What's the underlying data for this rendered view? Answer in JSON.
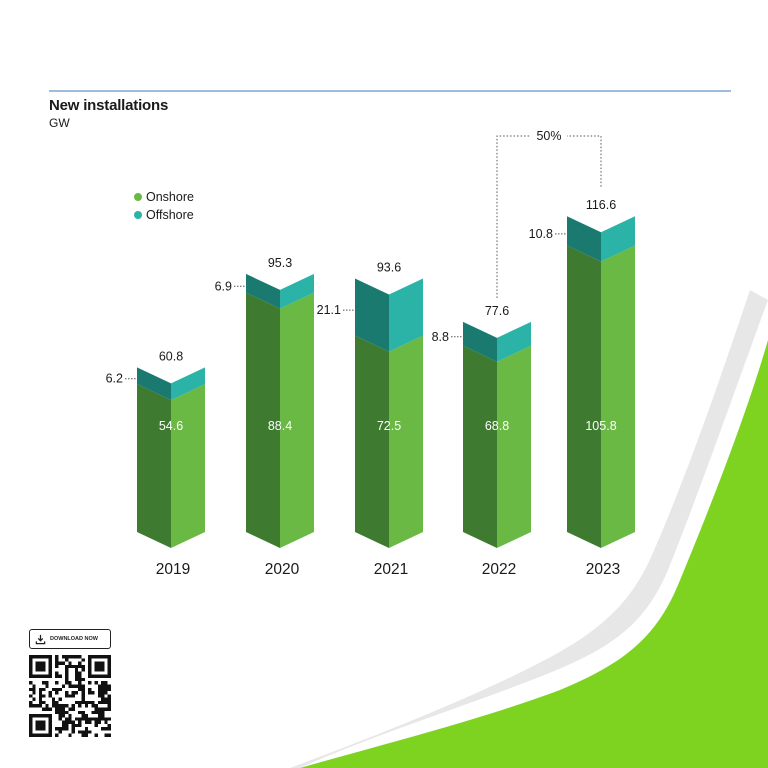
{
  "header": {
    "title": "New installations",
    "subtitle": "GW"
  },
  "legend": [
    {
      "label": "Onshore",
      "color": "#6ab945"
    },
    {
      "label": "Offshore",
      "color": "#2ab3a6"
    }
  ],
  "colors": {
    "onshore_front": "#6ab945",
    "onshore_side": "#3e7a2f",
    "offshore_front": "#2ab3a6",
    "offshore_side": "#1b7a70",
    "rule_line": "#3b7bbf",
    "swoosh": "#7ed321"
  },
  "chart_data": {
    "type": "bar",
    "stacked": true,
    "categories": [
      "2019",
      "2020",
      "2021",
      "2022",
      "2023"
    ],
    "series": [
      {
        "name": "Onshore",
        "values": [
          54.6,
          88.4,
          72.5,
          68.8,
          105.8
        ]
      },
      {
        "name": "Offshore",
        "values": [
          6.2,
          6.9,
          21.1,
          8.8,
          10.8
        ]
      }
    ],
    "totals": [
      60.8,
      95.3,
      93.6,
      77.6,
      116.6
    ],
    "annotations": [
      {
        "text": "50%",
        "from": "2022",
        "to": "2023"
      }
    ],
    "ylim": [
      0,
      125
    ]
  },
  "download": {
    "label": "DOWNLOAD NOW",
    "icon": "download-icon"
  }
}
